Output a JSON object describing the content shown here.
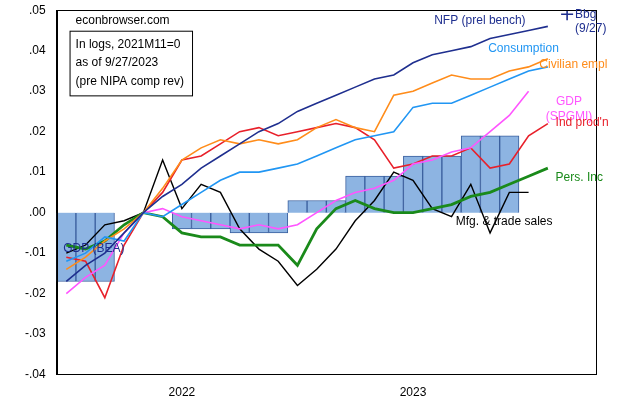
{
  "chart_data": {
    "type": "line",
    "source": "econbrowser.com",
    "annotation": [
      "In logs, 2021M11=0",
      "as of 9/27/2023",
      "(pre NIPA comp rev)"
    ],
    "categories": [
      null,
      null,
      null,
      null,
      null,
      null,
      "2022",
      null,
      null,
      null,
      null,
      null,
      null,
      null,
      null,
      null,
      null,
      null,
      "2023",
      null,
      null,
      null,
      null,
      null,
      null,
      null,
      null,
      null
    ],
    "ylim": [
      -0.04,
      0.05
    ],
    "yticks": [
      {
        "value": -0.04,
        "label": "-.04"
      },
      {
        "value": -0.03,
        "label": "-.03"
      },
      {
        "value": -0.02,
        "label": "-.02"
      },
      {
        "value": -0.01,
        "label": "-.01"
      },
      {
        "value": 0,
        "label": ".00"
      },
      {
        "value": 0.01,
        "label": ".01"
      },
      {
        "value": 0.02,
        "label": ".02"
      },
      {
        "value": 0.03,
        "label": ".03"
      },
      {
        "value": 0.04,
        "label": ".04"
      },
      {
        "value": 0.05,
        "label": ".05"
      }
    ],
    "grid": false,
    "series": [
      {
        "name": "NFP (prel bench)",
        "color": "#1f2f8f",
        "values": [
          -0.017,
          -0.013,
          -0.01,
          -0.005,
          0,
          0.004,
          0.007,
          0.011,
          0.014,
          0.017,
          0.02,
          0.022,
          0.025,
          0.027,
          0.029,
          0.031,
          0.033,
          0.034,
          0.037,
          0.039,
          0.04,
          0.041,
          0.043,
          0.044,
          0.045,
          0.046,
          null,
          null
        ]
      },
      {
        "name": "Bbg (9/27)",
        "color": "#1f2f8f",
        "marker": "cross",
        "line_style": "none",
        "values": [
          null,
          null,
          null,
          null,
          null,
          null,
          null,
          null,
          null,
          null,
          null,
          null,
          null,
          null,
          null,
          null,
          null,
          null,
          null,
          null,
          null,
          null,
          null,
          null,
          null,
          null,
          0.049,
          null
        ]
      },
      {
        "name": "Consumption",
        "color": "#2196f3",
        "values": [
          -0.012,
          -0.01,
          -0.006,
          -0.007,
          0,
          -0.001,
          0.002,
          0.005,
          0.008,
          0.01,
          0.01,
          0.011,
          0.012,
          0.014,
          0.016,
          0.018,
          0.019,
          0.02,
          0.026,
          0.027,
          0.027,
          0.029,
          0.031,
          0.033,
          0.035,
          0.036,
          null,
          null
        ]
      },
      {
        "name": "Civilian empl",
        "color": "#ff8c1a",
        "values": [
          -0.014,
          -0.011,
          -0.007,
          -0.004,
          0,
          0.006,
          0.013,
          0.016,
          0.018,
          0.017,
          0.018,
          0.017,
          0.018,
          0.021,
          0.023,
          0.021,
          0.02,
          0.029,
          0.03,
          0.032,
          0.034,
          0.033,
          0.033,
          0.035,
          0.036,
          0.038,
          null,
          null
        ]
      },
      {
        "name": "GDP (SPGMI)",
        "color": "#ff55ff",
        "values": [
          -0.02,
          -0.016,
          -0.013,
          -0.005,
          0,
          0.001,
          -0.001,
          -0.002,
          -0.003,
          -0.004,
          -0.003,
          -0.004,
          -0.003,
          0,
          0.003,
          0.005,
          0.006,
          0.008,
          0.012,
          0.013,
          0.015,
          0.016,
          0.02,
          0.024,
          0.03,
          null,
          null,
          null
        ]
      },
      {
        "name": "Ind prod'n",
        "color": "#e8202a",
        "values": [
          -0.011,
          -0.012,
          -0.021,
          -0.008,
          0,
          0.005,
          0.013,
          0.014,
          0.017,
          0.02,
          0.021,
          0.019,
          0.02,
          0.021,
          0.022,
          0.021,
          0.018,
          0.011,
          0.012,
          0.014,
          0.014,
          0.016,
          0.011,
          0.012,
          0.019,
          0.022,
          null,
          null
        ]
      },
      {
        "name": "Pers. Inc",
        "color": "#1a8a1a",
        "values": [
          -0.008,
          -0.009,
          -0.007,
          -0.003,
          0,
          -0.001,
          -0.005,
          -0.006,
          -0.006,
          -0.008,
          -0.008,
          -0.008,
          -0.013,
          -0.004,
          0.001,
          0.003,
          0.001,
          0,
          0,
          0.001,
          0.002,
          0.004,
          0.005,
          0.007,
          0.009,
          0.011,
          null,
          null
        ]
      },
      {
        "name": "Mfg. & trade sales",
        "color": "#000000",
        "values": [
          -0.01,
          -0.008,
          -0.003,
          -0.002,
          0,
          0.013,
          0.001,
          0.007,
          0.005,
          -0.004,
          -0.009,
          -0.012,
          -0.018,
          -0.014,
          -0.009,
          -0.002,
          0.003,
          0.01,
          0.008,
          0.001,
          -0.001,
          0.007,
          -0.005,
          0.005,
          0.005,
          null,
          null,
          null
        ]
      },
      {
        "name": "GDP (BEA)",
        "color": "#8db4e2",
        "type": "bar",
        "values": [
          -0.017,
          -0.017,
          -0.017,
          0,
          0,
          0,
          -0.004,
          -0.004,
          -0.004,
          -0.005,
          -0.005,
          -0.005,
          0.003,
          0.003,
          0.003,
          0.009,
          0.009,
          0.009,
          0.014,
          0.014,
          0.014,
          0.019,
          0.019,
          0.019,
          null,
          null,
          null,
          null
        ]
      }
    ]
  }
}
